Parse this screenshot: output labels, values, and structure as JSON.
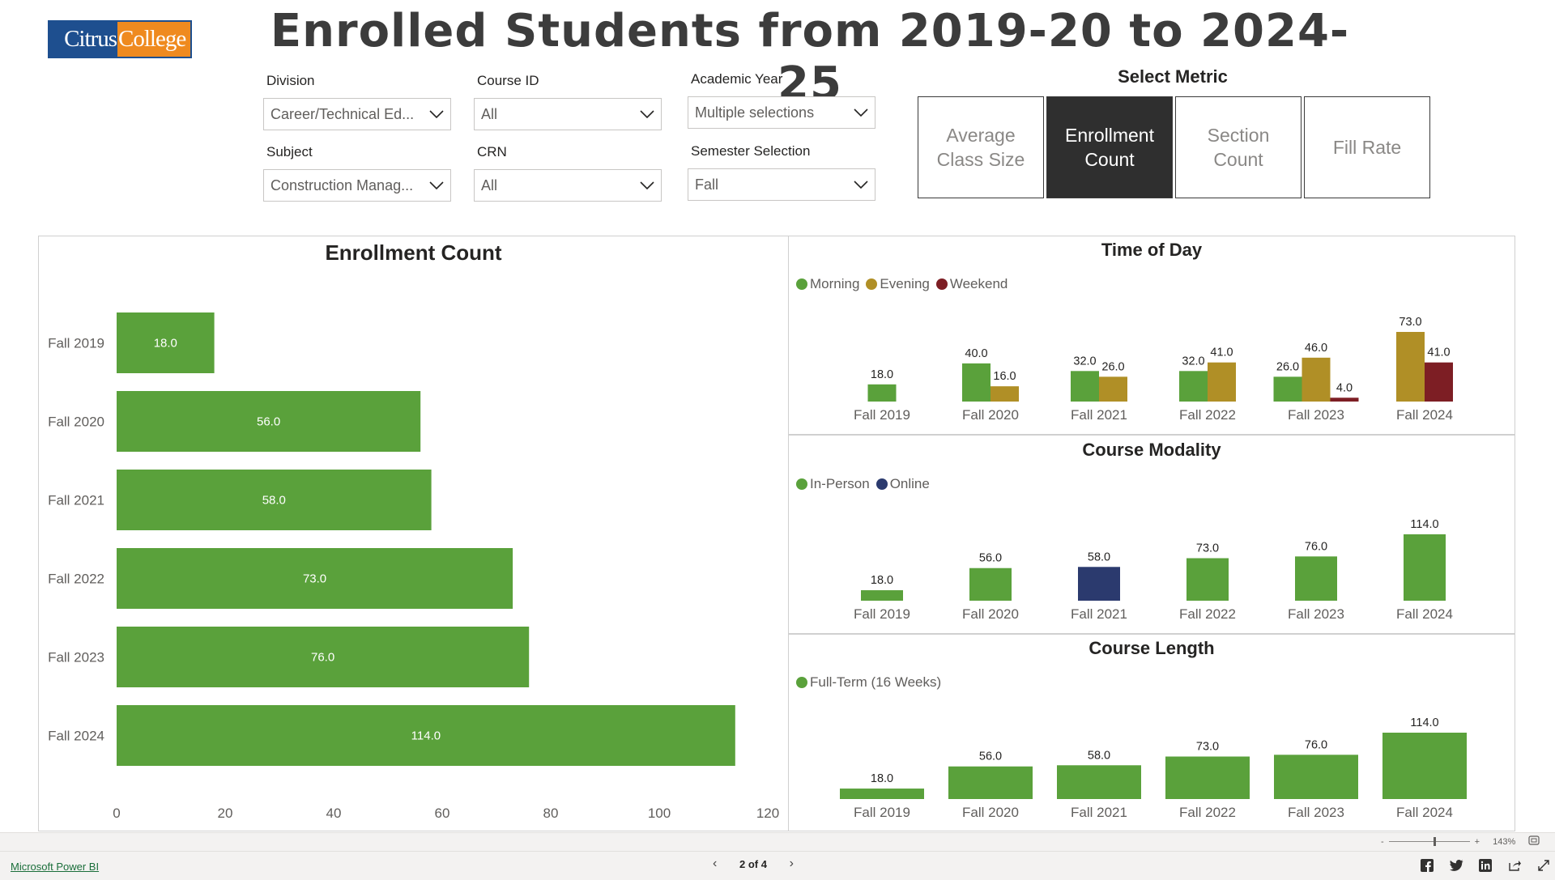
{
  "header": {
    "logo_part1": "Citrus",
    "logo_part2": "College",
    "title": "Enrolled Students from 2019-20 to 2024-25"
  },
  "filters": {
    "division_label": "Division",
    "division_value": "Career/Technical Ed...",
    "subject_label": "Subject",
    "subject_value": "Construction Manag...",
    "course_id_label": "Course ID",
    "course_id_value": "All",
    "crn_label": "CRN",
    "crn_value": "All",
    "academic_year_label": "Academic Year",
    "academic_year_value": "Multiple selections",
    "semester_label": "Semester Selection",
    "semester_value": "Fall"
  },
  "metric": {
    "title": "Select Metric",
    "buttons": [
      {
        "label": "Average Class Size",
        "active": false
      },
      {
        "label": "Enrollment Count",
        "active": true
      },
      {
        "label": "Section Count",
        "active": false
      },
      {
        "label": "Fill Rate",
        "active": false
      }
    ]
  },
  "colors": {
    "green": "#5aa13b",
    "gold": "#b08f26",
    "maroon": "#7d1e24",
    "navy": "#2b3a6e",
    "active_button": "#2f2f2f"
  },
  "chart_data": [
    {
      "id": "enrollment",
      "type": "bar",
      "orientation": "horizontal",
      "title": "Enrollment Count",
      "categories": [
        "Fall 2019",
        "Fall 2020",
        "Fall 2021",
        "Fall 2022",
        "Fall 2023",
        "Fall 2024"
      ],
      "values": [
        18,
        56,
        58,
        73,
        76,
        114
      ],
      "data_labels": [
        "18.0",
        "56.0",
        "58.0",
        "73.0",
        "76.0",
        "114.0"
      ],
      "x_ticks": [
        "0",
        "20",
        "40",
        "60",
        "80",
        "100",
        "120"
      ],
      "xlim": [
        0,
        120
      ],
      "grid": false
    },
    {
      "id": "time-of-day",
      "type": "bar",
      "title": "Time of Day",
      "categories": [
        "Fall 2019",
        "Fall 2020",
        "Fall 2021",
        "Fall 2022",
        "Fall 2023",
        "Fall 2024"
      ],
      "legend_position": "top-left",
      "series": [
        {
          "name": "Morning",
          "color": "#5aa13b",
          "values": [
            18,
            40,
            32,
            32,
            26,
            null
          ],
          "labels": [
            "18.0",
            "40.0",
            "32.0",
            "32.0",
            "26.0",
            ""
          ]
        },
        {
          "name": "Evening",
          "color": "#b08f26",
          "values": [
            null,
            16,
            26,
            41,
            46,
            73
          ],
          "labels": [
            "",
            "16.0",
            "26.0",
            "41.0",
            "46.0",
            "73.0"
          ]
        },
        {
          "name": "Weekend",
          "color": "#7d1e24",
          "values": [
            null,
            null,
            null,
            null,
            4,
            41
          ],
          "labels": [
            "",
            "",
            "",
            "",
            "4.0",
            "41.0"
          ]
        }
      ],
      "ylim": [
        0,
        73
      ]
    },
    {
      "id": "course-modality",
      "type": "bar",
      "title": "Course Modality",
      "categories": [
        "Fall 2019",
        "Fall 2020",
        "Fall 2021",
        "Fall 2022",
        "Fall 2023",
        "Fall 2024"
      ],
      "legend_position": "top-left",
      "series": [
        {
          "name": "In-Person",
          "color": "#5aa13b",
          "values": [
            18,
            56,
            null,
            73,
            76,
            114
          ],
          "labels": [
            "18.0",
            "56.0",
            "",
            "73.0",
            "76.0",
            "114.0"
          ]
        },
        {
          "name": "Online",
          "color": "#2b3a6e",
          "values": [
            null,
            null,
            58,
            null,
            null,
            null
          ],
          "labels": [
            "",
            "",
            "58.0",
            "",
            "",
            ""
          ]
        }
      ],
      "ylim": [
        0,
        114
      ]
    },
    {
      "id": "course-length",
      "type": "bar",
      "title": "Course Length",
      "categories": [
        "Fall 2019",
        "Fall 2020",
        "Fall 2021",
        "Fall 2022",
        "Fall 2023",
        "Fall 2024"
      ],
      "legend_position": "top-left",
      "series": [
        {
          "name": "Full-Term (16 Weeks)",
          "color": "#5aa13b",
          "values": [
            18,
            56,
            58,
            73,
            76,
            114
          ],
          "labels": [
            "18.0",
            "56.0",
            "58.0",
            "73.0",
            "76.0",
            "114.0"
          ]
        }
      ],
      "ylim": [
        0,
        114
      ]
    }
  ],
  "footer": {
    "powerbi_link": "Microsoft Power BI",
    "page_indicator": "2 of 4",
    "zoom_level": "143%",
    "zoom_minus": "-",
    "zoom_plus": "+"
  }
}
